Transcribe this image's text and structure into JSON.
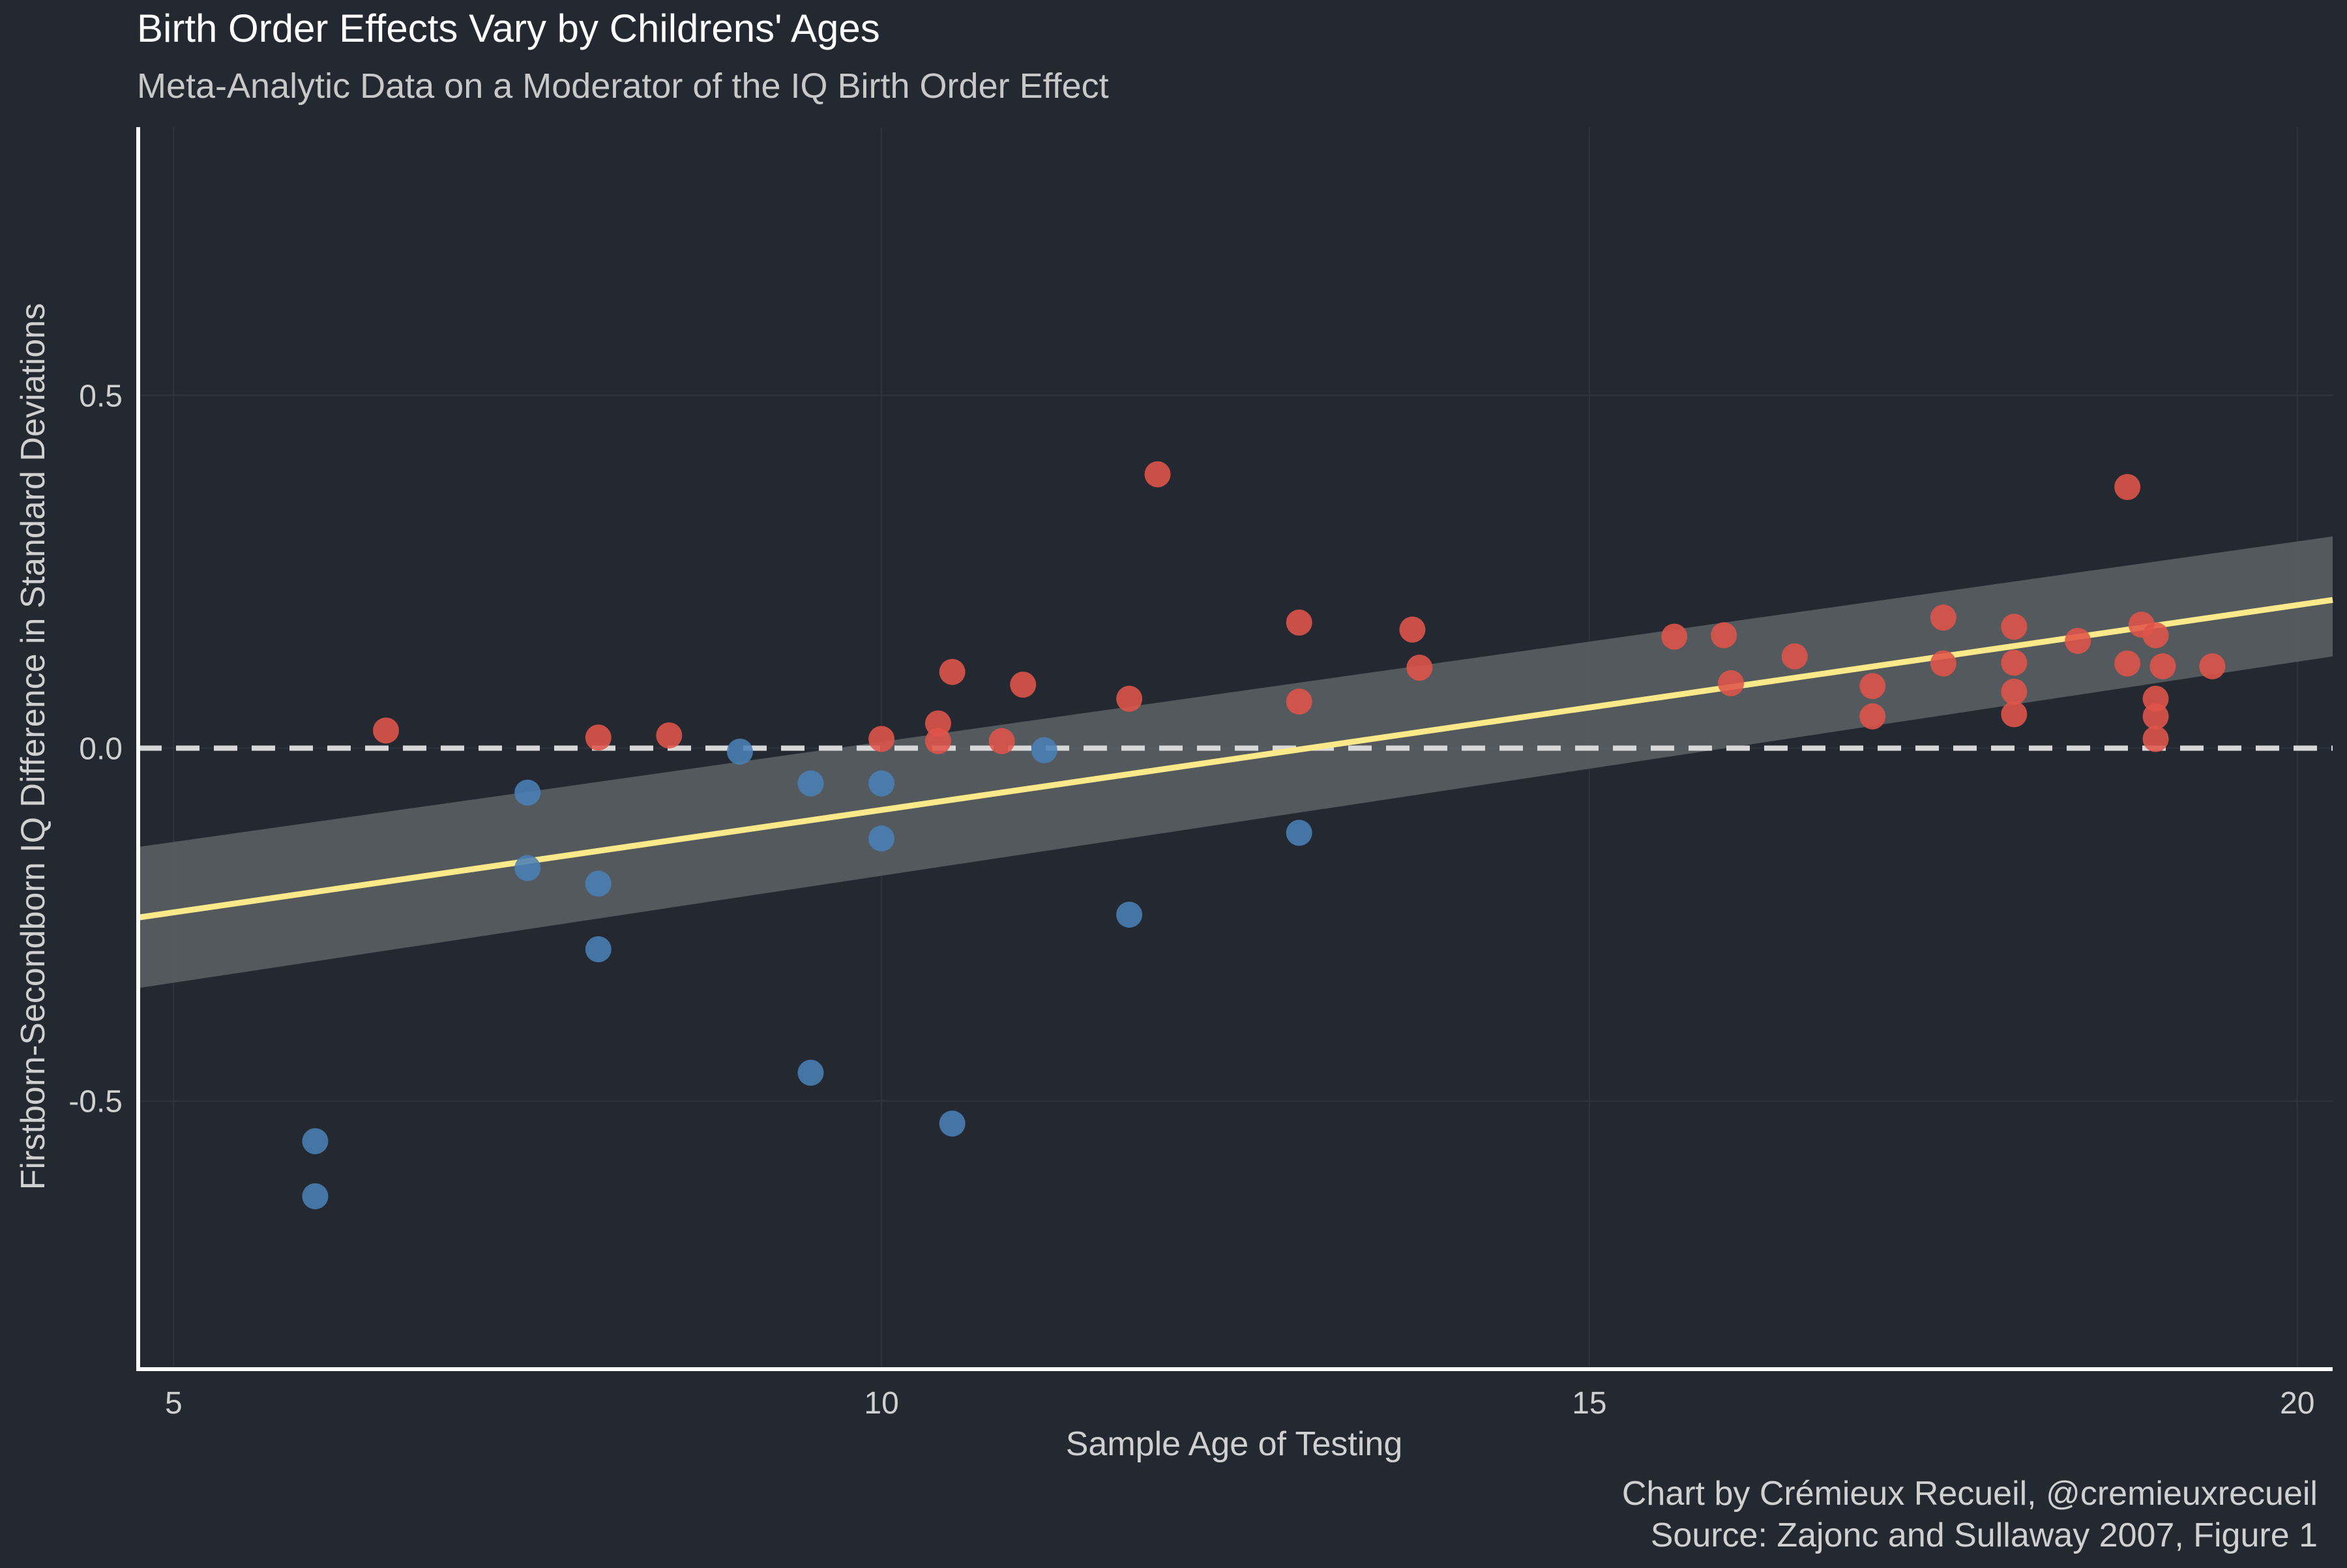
{
  "chart_data": {
    "type": "scatter",
    "title": "Birth Order Effects Vary by Childrens' Ages",
    "subtitle": "Meta-Analytic Data on a Moderator of the IQ Birth Order Effect",
    "xlabel": "Sample Age of Testing",
    "ylabel": "Firstborn-Secondborn IQ Difference in Standard Deviations",
    "caption": [
      "Chart by Crémieux Recueil, @cremieuxrecueil",
      "Source: Zajonc and Sullaway 2007, Figure 1"
    ],
    "xlim": [
      4.75,
      20.25
    ],
    "ylim": [
      -0.88,
      0.88
    ],
    "x_ticks": [
      5,
      10,
      15,
      20
    ],
    "x_tick_labels": [
      "5",
      "10",
      "15",
      "20"
    ],
    "y_ticks": [
      -0.5,
      0.0,
      0.5
    ],
    "y_tick_labels": [
      "-0.5",
      "0.0",
      "0.5"
    ],
    "grid": true,
    "legend": "none",
    "reference_line": {
      "y": 0.0,
      "style": "dashed"
    },
    "trend": {
      "type": "linear fit with confidence band",
      "x": [
        4.75,
        20.25
      ],
      "y": [
        -0.24,
        0.21
      ],
      "band_lower": [
        -0.34,
        0.13
      ],
      "band_upper": [
        -0.14,
        0.3
      ]
    },
    "colors": {
      "background": "#232831",
      "grid": "#2f353e",
      "axis": "#ffffff",
      "text": "#d0d0d0",
      "title": "#ffffff",
      "positive_points": "#e0544a",
      "negative_points": "#4a7fb5",
      "trend_line": "#fce98a",
      "band": "#5a5e63",
      "reference_line": "#d8d8d8"
    },
    "series": [
      {
        "name": "",
        "color": "#e0544a",
        "points": [
          [
            6.5,
            0.025
          ],
          [
            8.0,
            0.015
          ],
          [
            8.5,
            0.018
          ],
          [
            10.0,
            0.013
          ],
          [
            10.4,
            0.035
          ],
          [
            10.4,
            0.01
          ],
          [
            10.5,
            0.108
          ],
          [
            10.85,
            0.01
          ],
          [
            11.0,
            0.09
          ],
          [
            11.75,
            0.07
          ],
          [
            11.95,
            0.388
          ],
          [
            12.95,
            0.178
          ],
          [
            12.95,
            0.066
          ],
          [
            13.75,
            0.168
          ],
          [
            13.8,
            0.114
          ],
          [
            15.6,
            0.158
          ],
          [
            15.95,
            0.16
          ],
          [
            16.0,
            0.092
          ],
          [
            16.45,
            0.13
          ],
          [
            17.0,
            0.045
          ],
          [
            17.0,
            0.088
          ],
          [
            17.5,
            0.185
          ],
          [
            17.5,
            0.12
          ],
          [
            18.0,
            0.172
          ],
          [
            18.0,
            0.121
          ],
          [
            18.0,
            0.08
          ],
          [
            18.0,
            0.048
          ],
          [
            18.45,
            0.152
          ],
          [
            18.8,
            0.37
          ],
          [
            18.8,
            0.12
          ],
          [
            18.9,
            0.175
          ],
          [
            19.0,
            0.16
          ],
          [
            19.0,
            0.07
          ],
          [
            19.0,
            0.045
          ],
          [
            19.0,
            0.013
          ],
          [
            19.05,
            0.116
          ],
          [
            19.4,
            0.116
          ]
        ]
      },
      {
        "name": "",
        "color": "#4a7fb5",
        "points": [
          [
            6.0,
            -0.557
          ],
          [
            6.0,
            -0.635
          ],
          [
            7.5,
            -0.063
          ],
          [
            7.5,
            -0.17
          ],
          [
            8.0,
            -0.192
          ],
          [
            8.0,
            -0.285
          ],
          [
            9.0,
            -0.005
          ],
          [
            9.5,
            -0.05
          ],
          [
            9.5,
            -0.46
          ],
          [
            10.0,
            -0.05
          ],
          [
            10.0,
            -0.128
          ],
          [
            10.5,
            -0.532
          ],
          [
            11.15,
            -0.003
          ],
          [
            11.75,
            -0.236
          ],
          [
            12.95,
            -0.12
          ]
        ]
      }
    ]
  }
}
